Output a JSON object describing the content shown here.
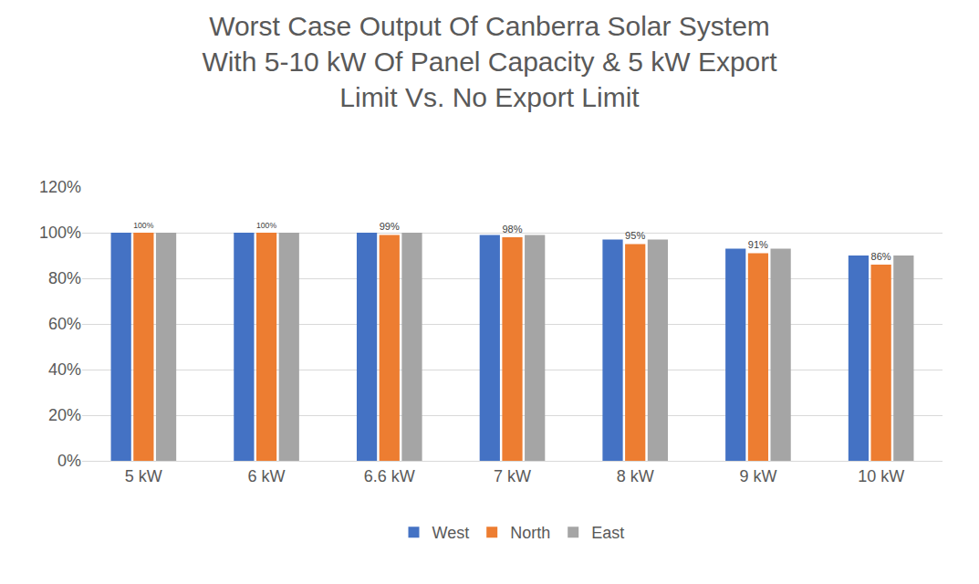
{
  "chart_data": {
    "type": "bar",
    "title": "Worst Case Output Of Canberra Solar System\nWith 5-10 kW Of Panel Capacity & 5 kW Export\nLimit Vs. No Export Limit",
    "categories": [
      "5 kW",
      "6 kW",
      "6.6 kW",
      "7 kW",
      "8 kW",
      "9 kW",
      "10 kW"
    ],
    "series": [
      {
        "name": "West",
        "color": "#4472C4",
        "values": [
          100,
          100,
          100,
          99,
          97,
          93,
          90
        ]
      },
      {
        "name": "North",
        "color": "#ED7D31",
        "values": [
          100,
          100,
          99,
          98,
          95,
          91,
          86
        ],
        "data_labels": true,
        "value_labels": [
          "100%",
          "100%",
          "99%",
          "98%",
          "95%",
          "91%",
          "86%"
        ]
      },
      {
        "name": "East",
        "color": "#A5A5A5",
        "values": [
          100,
          100,
          100,
          99,
          97,
          93,
          90
        ]
      }
    ],
    "ylim": [
      0,
      120
    ],
    "yticks": [
      {
        "value": 0,
        "label": "0%"
      },
      {
        "value": 20,
        "label": "20%"
      },
      {
        "value": 40,
        "label": "40%"
      },
      {
        "value": 60,
        "label": "60%"
      },
      {
        "value": 80,
        "label": "80%"
      },
      {
        "value": 100,
        "label": "100%"
      },
      {
        "value": 120,
        "label": "120%"
      }
    ],
    "grid": true,
    "legend": "bottom"
  }
}
